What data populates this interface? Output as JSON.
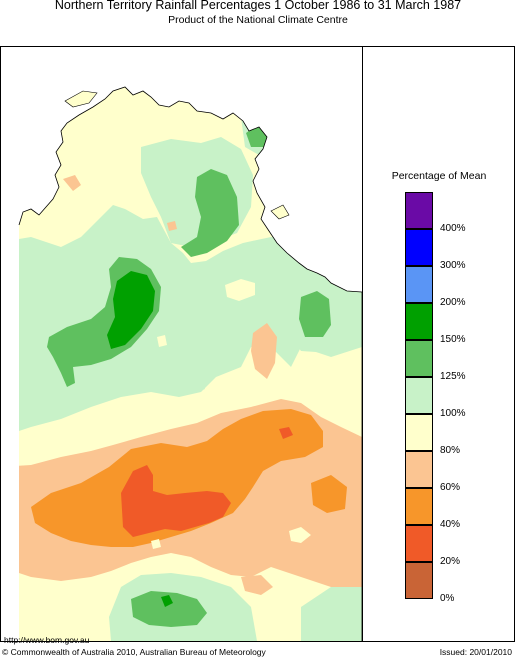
{
  "header": {
    "title": "Northern Territory Rainfall Percentages 1 October 1986 to 31 March 1987",
    "subtitle": "Product of the National Climate Centre"
  },
  "legend": {
    "title": "Percentage of Mean",
    "bins": [
      {
        "range": "over 400%",
        "color": "#6a0aa6"
      },
      {
        "range": "300–400%",
        "color": "#0000ff"
      },
      {
        "range": "200–300%",
        "color": "#2a6aff"
      },
      {
        "range": "150–200%",
        "color": "#00a000"
      },
      {
        "range": "125–150%",
        "color": "#5fc05f"
      },
      {
        "range": "100–125%",
        "color": "#c8f2c8"
      },
      {
        "range": "80–100%",
        "color": "#ffffcc"
      },
      {
        "range": "60–80%",
        "color": "#fbc592"
      },
      {
        "range": "40–60%",
        "color": "#f7962a"
      },
      {
        "range": "20–40%",
        "color": "#f05a28"
      },
      {
        "range": "0–20%",
        "color": "#c96436"
      }
    ],
    "labels": [
      "400%",
      "300%",
      "200%",
      "150%",
      "125%",
      "100%",
      "80%",
      "60%",
      "40%",
      "20%",
      "0%"
    ]
  },
  "footer": {
    "url": "http://www.bom.gov.au",
    "copyright": "© Commonwealth of Australia 2010, Australian Bureau of Meteorology",
    "issued": "Issued: 20/01/2010"
  }
}
